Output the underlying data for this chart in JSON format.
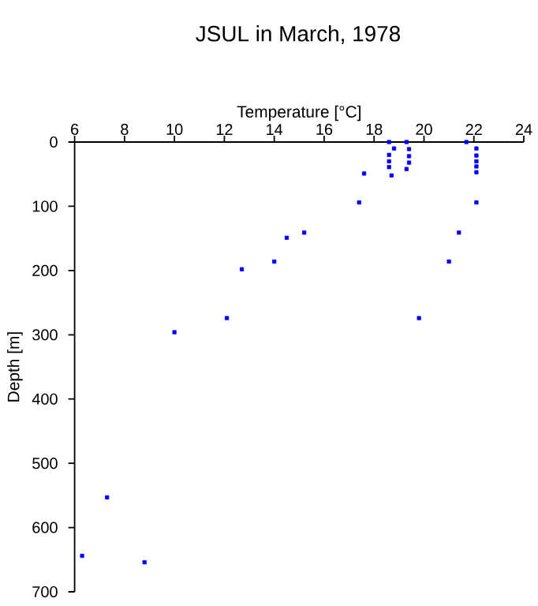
{
  "chart_data": {
    "type": "scatter",
    "title": "JSUL in March, 1978",
    "xlabel": "Temperature [°C]",
    "ylabel": "Depth [m]",
    "x": [
      18.6,
      19.3,
      21.7,
      18.8,
      19.4,
      22.1,
      18.6,
      19.4,
      22.1,
      18.6,
      19.4,
      22.1,
      18.6,
      19.3,
      22.1,
      18.7,
      17.6,
      22.1,
      17.4,
      22.1,
      15.2,
      21.4,
      14.5,
      14.0,
      21.0,
      12.7,
      12.1,
      19.8,
      10.0,
      7.3,
      6.3,
      8.8
    ],
    "values": [
      0,
      0,
      0,
      10,
      11,
      10,
      20,
      22,
      21,
      30,
      32,
      30,
      39,
      42,
      38,
      52,
      49,
      47,
      94,
      94,
      141,
      141,
      149,
      186,
      186,
      198,
      274,
      274,
      296,
      553,
      644,
      654
    ],
    "color": "#0000ff",
    "marker": "square",
    "xlim": [
      6,
      24
    ],
    "xticks": [
      6,
      8,
      10,
      12,
      14,
      16,
      18,
      20,
      22,
      24
    ],
    "ylim": [
      700,
      0
    ],
    "yticks": [
      0,
      100,
      200,
      300,
      400,
      500,
      600,
      700
    ],
    "grid": false
  }
}
